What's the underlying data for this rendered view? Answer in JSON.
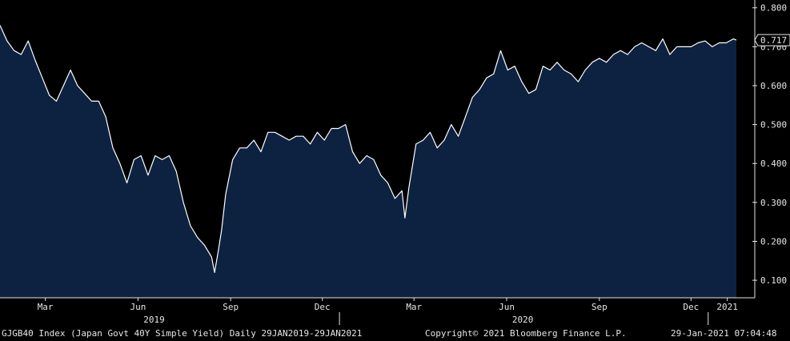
{
  "chart_data": {
    "type": "area",
    "title": "",
    "xlabel": "",
    "ylabel": "",
    "ylim": [
      0.055,
      0.82
    ],
    "xlim": [
      "2019-01-29",
      "2021-01-29"
    ],
    "yticks": [
      0.1,
      0.2,
      0.3,
      0.4,
      0.5,
      0.6,
      0.7,
      0.8
    ],
    "ytick_labels": [
      "0.100",
      "0.200",
      "0.300",
      "0.400",
      "0.500",
      "0.600",
      "0.700",
      "0.800"
    ],
    "month_ticks": [
      {
        "date": "2019-03-15",
        "label": "Mar"
      },
      {
        "date": "2019-06-15",
        "label": "Jun"
      },
      {
        "date": "2019-09-15",
        "label": "Sep"
      },
      {
        "date": "2019-12-15",
        "label": "Dec"
      },
      {
        "date": "2020-03-15",
        "label": "Mar"
      },
      {
        "date": "2020-06-15",
        "label": "Jun"
      },
      {
        "date": "2020-09-15",
        "label": "Sep"
      },
      {
        "date": "2020-12-15",
        "label": "Dec"
      },
      {
        "date": "2021-01-20",
        "label": "2021"
      }
    ],
    "year_labels": [
      {
        "date": "2019-07-01",
        "label": "2019"
      },
      {
        "date": "2020-07-01",
        "label": "2020"
      }
    ],
    "year_separators": [
      "2020-01-01",
      "2021-01-01"
    ],
    "last_value_label": "0.717",
    "colors": {
      "fill": "#0d2240",
      "line": "#ffffff",
      "background": "#000000",
      "text": "#e6e6e6"
    },
    "series": [
      {
        "name": "GJGB40 Index",
        "x": [
          "2019-01-29",
          "2019-02-05",
          "2019-02-12",
          "2019-02-19",
          "2019-02-26",
          "2019-03-05",
          "2019-03-12",
          "2019-03-19",
          "2019-03-26",
          "2019-04-02",
          "2019-04-09",
          "2019-04-16",
          "2019-04-23",
          "2019-04-30",
          "2019-05-07",
          "2019-05-14",
          "2019-05-21",
          "2019-05-28",
          "2019-06-04",
          "2019-06-11",
          "2019-06-18",
          "2019-06-25",
          "2019-07-02",
          "2019-07-09",
          "2019-07-16",
          "2019-07-23",
          "2019-07-30",
          "2019-08-06",
          "2019-08-13",
          "2019-08-20",
          "2019-08-27",
          "2019-08-30",
          "2019-09-03",
          "2019-09-06",
          "2019-09-10",
          "2019-09-17",
          "2019-09-24",
          "2019-10-01",
          "2019-10-08",
          "2019-10-15",
          "2019-10-22",
          "2019-10-29",
          "2019-11-05",
          "2019-11-12",
          "2019-11-19",
          "2019-11-26",
          "2019-12-03",
          "2019-12-10",
          "2019-12-17",
          "2019-12-24",
          "2019-12-31",
          "2020-01-07",
          "2020-01-14",
          "2020-01-21",
          "2020-01-28",
          "2020-02-04",
          "2020-02-11",
          "2020-02-18",
          "2020-02-25",
          "2020-03-03",
          "2020-03-06",
          "2020-03-10",
          "2020-03-17",
          "2020-03-24",
          "2020-03-31",
          "2020-04-07",
          "2020-04-14",
          "2020-04-21",
          "2020-04-28",
          "2020-05-05",
          "2020-05-12",
          "2020-05-19",
          "2020-05-26",
          "2020-06-02",
          "2020-06-09",
          "2020-06-16",
          "2020-06-23",
          "2020-06-30",
          "2020-07-07",
          "2020-07-14",
          "2020-07-21",
          "2020-07-28",
          "2020-08-04",
          "2020-08-11",
          "2020-08-18",
          "2020-08-25",
          "2020-09-01",
          "2020-09-08",
          "2020-09-15",
          "2020-09-22",
          "2020-09-29",
          "2020-10-06",
          "2020-10-13",
          "2020-10-20",
          "2020-10-27",
          "2020-11-03",
          "2020-11-10",
          "2020-11-17",
          "2020-11-24",
          "2020-12-01",
          "2020-12-08",
          "2020-12-15",
          "2020-12-22",
          "2020-12-29",
          "2021-01-05",
          "2021-01-12",
          "2021-01-19",
          "2021-01-26",
          "2021-01-29"
        ],
        "values": [
          0.755,
          0.715,
          0.69,
          0.68,
          0.715,
          0.665,
          0.62,
          0.575,
          0.56,
          0.6,
          0.64,
          0.6,
          0.58,
          0.56,
          0.56,
          0.52,
          0.44,
          0.4,
          0.35,
          0.41,
          0.42,
          0.37,
          0.42,
          0.41,
          0.42,
          0.38,
          0.3,
          0.24,
          0.21,
          0.19,
          0.16,
          0.12,
          0.18,
          0.23,
          0.32,
          0.41,
          0.44,
          0.44,
          0.46,
          0.43,
          0.48,
          0.48,
          0.47,
          0.46,
          0.47,
          0.47,
          0.45,
          0.48,
          0.46,
          0.49,
          0.49,
          0.5,
          0.43,
          0.4,
          0.42,
          0.41,
          0.37,
          0.35,
          0.31,
          0.33,
          0.26,
          0.34,
          0.45,
          0.46,
          0.48,
          0.44,
          0.46,
          0.5,
          0.47,
          0.52,
          0.57,
          0.59,
          0.62,
          0.63,
          0.69,
          0.64,
          0.65,
          0.61,
          0.58,
          0.59,
          0.65,
          0.64,
          0.66,
          0.64,
          0.63,
          0.61,
          0.64,
          0.66,
          0.67,
          0.66,
          0.68,
          0.69,
          0.68,
          0.7,
          0.71,
          0.7,
          0.69,
          0.72,
          0.68,
          0.7,
          0.7,
          0.7,
          0.71,
          0.715,
          0.7,
          0.71,
          0.71,
          0.72,
          0.717
        ]
      }
    ]
  },
  "footer": {
    "left": "GJGB40 Index (Japan Govt 40Y Simple Yield)  Daily 29JAN2019-29JAN2021",
    "center": "Copyright© 2021 Bloomberg Finance L.P.",
    "right": "29-Jan-2021 07:04:48"
  }
}
